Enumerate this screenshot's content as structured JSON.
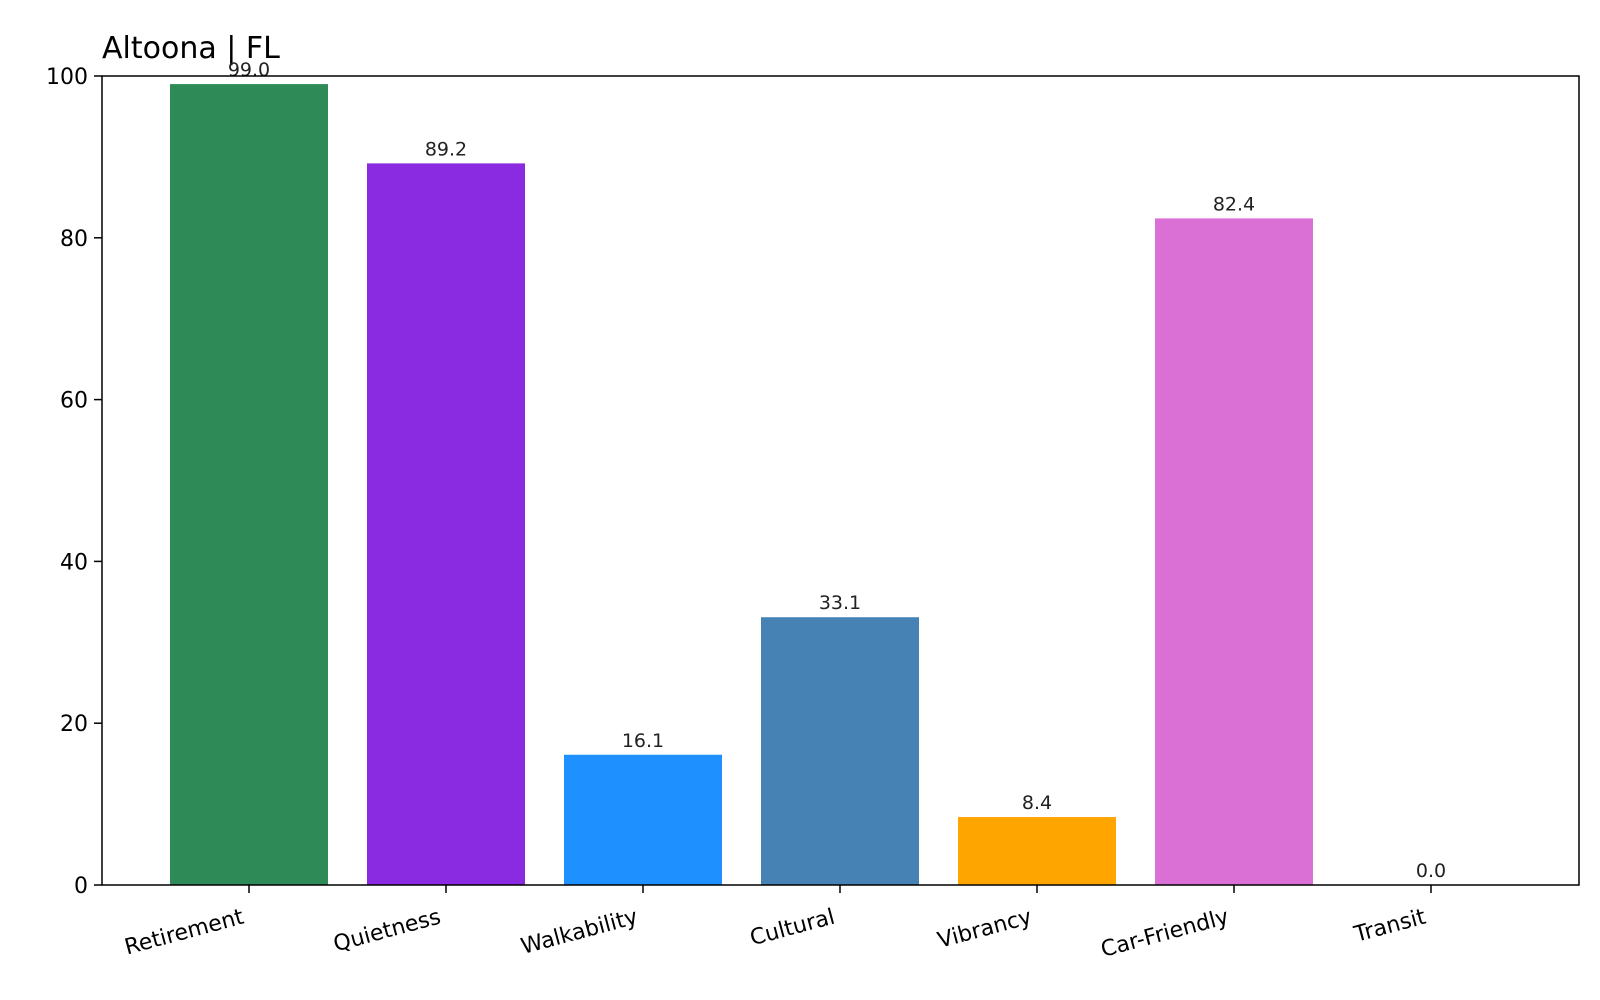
{
  "chart_data": {
    "type": "bar",
    "title": "Altoona | FL",
    "xlabel": "",
    "ylabel": "",
    "categories": [
      "Retirement",
      "Quietness",
      "Walkability",
      "Cultural",
      "Vibrancy",
      "Car-Friendly",
      "Transit"
    ],
    "values": [
      99.0,
      89.2,
      16.1,
      33.1,
      8.4,
      82.4,
      0.0
    ],
    "value_labels": [
      "99.0",
      "89.2",
      "16.1",
      "33.1",
      "8.4",
      "82.4",
      "0.0"
    ],
    "colors": [
      "#2e8b57",
      "#8a2be2",
      "#1e90ff",
      "#4682b4",
      "#ffa500",
      "#da70d6",
      "#808080"
    ],
    "ylim": [
      0,
      100
    ],
    "yticks": [
      0,
      20,
      40,
      60,
      80,
      100
    ],
    "ytick_labels": [
      "0",
      "20",
      "40",
      "60",
      "80",
      "100"
    ],
    "grid": false,
    "legend": "none"
  }
}
